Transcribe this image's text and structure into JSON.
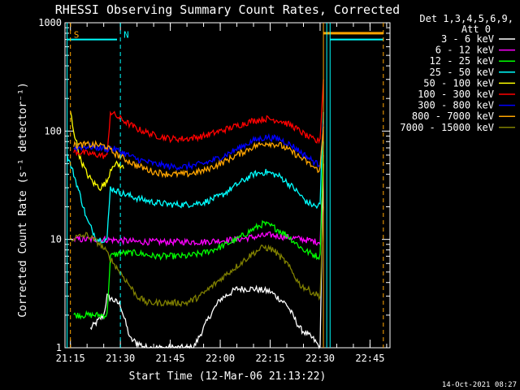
{
  "chart_data": {
    "type": "line",
    "title": "RHESSI Observing Summary Count Rates, Corrected",
    "xlabel": "Start Time (12-Mar-06 21:13:22)",
    "ylabel": "Corrected Count Rate (s⁻¹ detector⁻¹)",
    "ylim": [
      1,
      1000
    ],
    "ylog": true,
    "xlim": [
      "21:13:22",
      "22:51:00"
    ],
    "x_ticks": [
      "21:15",
      "21:30",
      "21:45",
      "22:00",
      "22:15",
      "22:30",
      "22:45"
    ],
    "y_ticks": [
      "1",
      "10",
      "100",
      "1000"
    ],
    "legend_title": [
      "Det 1,3,4,5,6,9,",
      "Att 0"
    ],
    "legend_placement": "right",
    "series": [
      {
        "name": "3 - 6 keV",
        "color": "#ffffff",
        "x": [
          "21:21",
          "21:25",
          "21:26",
          "21:30",
          "21:33",
          "21:38",
          "21:45",
          "21:52",
          "21:57",
          "22:00",
          "22:05",
          "22:10",
          "22:15",
          "22:20",
          "22:24",
          "22:28",
          "22:30",
          "22:31"
        ],
        "y": [
          1.5,
          2.0,
          3.0,
          2.5,
          1.2,
          1.0,
          1.0,
          1.0,
          2.0,
          2.8,
          3.5,
          3.5,
          3.3,
          2.5,
          1.5,
          1.2,
          1.0,
          50
        ]
      },
      {
        "name": "6 - 12 keV",
        "color": "#ff00ff",
        "x": [
          "21:16",
          "21:20",
          "21:25",
          "21:30",
          "21:35",
          "21:45",
          "21:55",
          "22:05",
          "22:10",
          "22:15",
          "22:20",
          "22:25",
          "22:29",
          "22:30",
          "22:31"
        ],
        "y": [
          10,
          10,
          10,
          9.8,
          9.5,
          9.5,
          9.5,
          10,
          10.5,
          11,
          10.5,
          10,
          9.5,
          9.5,
          60
        ]
      },
      {
        "name": "12 - 25 keV",
        "color": "#00ff00",
        "x": [
          "21:16",
          "21:23",
          "21:26",
          "21:27",
          "21:30",
          "21:35",
          "21:40",
          "21:45",
          "21:50",
          "21:55",
          "22:00",
          "22:05",
          "22:10",
          "22:13",
          "22:16",
          "22:20",
          "22:25",
          "22:29",
          "22:30",
          "22:31"
        ],
        "y": [
          2.0,
          2.0,
          2.0,
          7.0,
          7.5,
          7.5,
          7.0,
          7.0,
          7.0,
          7.5,
          8.5,
          10,
          12.5,
          14,
          13,
          11,
          8,
          7,
          7,
          80
        ]
      },
      {
        "name": "25 - 50 keV",
        "color": "#00ffff",
        "x": [
          "21:14",
          "21:16",
          "21:18",
          "21:20",
          "21:23",
          "21:26",
          "21:27",
          "21:30",
          "21:35",
          "21:40",
          "21:45",
          "21:50",
          "21:55",
          "22:00",
          "22:05",
          "22:10",
          "22:14",
          "22:18",
          "22:22",
          "22:26",
          "22:29",
          "22:30",
          "22:31"
        ],
        "y": [
          60,
          40,
          25,
          15,
          10,
          10,
          30,
          27,
          24,
          22,
          21,
          21,
          22,
          25,
          32,
          40,
          42,
          38,
          30,
          22,
          20,
          21,
          150
        ]
      },
      {
        "name": "50 - 100 keV",
        "color": "#ffff00",
        "x": [
          "21:15",
          "21:16",
          "21:18",
          "21:20",
          "21:22",
          "21:24",
          "21:26",
          "21:27",
          "21:28",
          "21:30",
          "21:31"
        ],
        "y": [
          150,
          100,
          55,
          40,
          33,
          30,
          34,
          44,
          50,
          48,
          45
        ]
      },
      {
        "name": "100 - 300 keV",
        "color": "#ff0000",
        "x": [
          "21:16",
          "21:20",
          "21:24",
          "21:26",
          "21:27",
          "21:30",
          "21:35",
          "21:40",
          "21:45",
          "21:50",
          "21:55",
          "22:00",
          "22:05",
          "22:10",
          "22:14",
          "22:18",
          "22:22",
          "22:26",
          "22:29",
          "22:30",
          "22:31"
        ],
        "y": [
          65,
          62,
          60,
          58,
          150,
          130,
          105,
          92,
          85,
          85,
          90,
          100,
          112,
          125,
          130,
          125,
          110,
          90,
          80,
          85,
          300
        ]
      },
      {
        "name": "300 - 800 keV",
        "color": "#0000ff",
        "x": [
          "21:16",
          "21:20",
          "21:24",
          "21:26",
          "21:27",
          "21:30",
          "21:35",
          "21:40",
          "21:45",
          "21:50",
          "21:55",
          "22:00",
          "22:05",
          "22:10",
          "22:14",
          "22:18",
          "22:22",
          "22:26",
          "22:29",
          "22:30",
          "22:31"
        ],
        "y": [
          70,
          72,
          70,
          68,
          70,
          65,
          55,
          50,
          47,
          47,
          50,
          57,
          68,
          82,
          88,
          84,
          72,
          58,
          50,
          50,
          120
        ]
      },
      {
        "name": "800 - 7000 keV",
        "color": "#ffa500",
        "x": [
          "21:16",
          "21:20",
          "21:24",
          "21:26",
          "21:27",
          "21:30",
          "21:35",
          "21:40",
          "21:45",
          "21:50",
          "21:55",
          "22:00",
          "22:05",
          "22:10",
          "22:14",
          "22:18",
          "22:22",
          "22:26",
          "22:29",
          "22:30",
          "22:31"
        ],
        "y": [
          74,
          75,
          74,
          72,
          66,
          58,
          48,
          42,
          40,
          40,
          43,
          50,
          60,
          72,
          78,
          74,
          63,
          52,
          44,
          45,
          110
        ]
      },
      {
        "name": "7000 - 15000 keV",
        "color": "#808000",
        "x": [
          "21:15",
          "21:17",
          "21:20",
          "21:24",
          "21:26",
          "21:28",
          "21:31",
          "21:35",
          "21:38",
          "21:42",
          "21:47",
          "21:50",
          "21:54",
          "21:58",
          "22:02",
          "22:06",
          "22:10",
          "22:13",
          "22:16",
          "22:20",
          "22:24",
          "22:28",
          "22:30",
          "22:31"
        ],
        "y": [
          10,
          10.5,
          11,
          9,
          7.5,
          6,
          4.5,
          3.0,
          2.6,
          2.6,
          2.6,
          2.6,
          3.0,
          3.8,
          4.8,
          6.0,
          7.5,
          8.5,
          8.0,
          6.0,
          3.8,
          3.2,
          3.0,
          20
        ]
      }
    ],
    "annotations": [
      {
        "label": "S",
        "color": "#ffa500",
        "x": "21:15",
        "y": 700
      },
      {
        "label": "N",
        "color": "#00ffff",
        "x": "21:30",
        "y": 700
      }
    ]
  },
  "footer": {
    "date": "14-Oct-2021 08:27"
  }
}
